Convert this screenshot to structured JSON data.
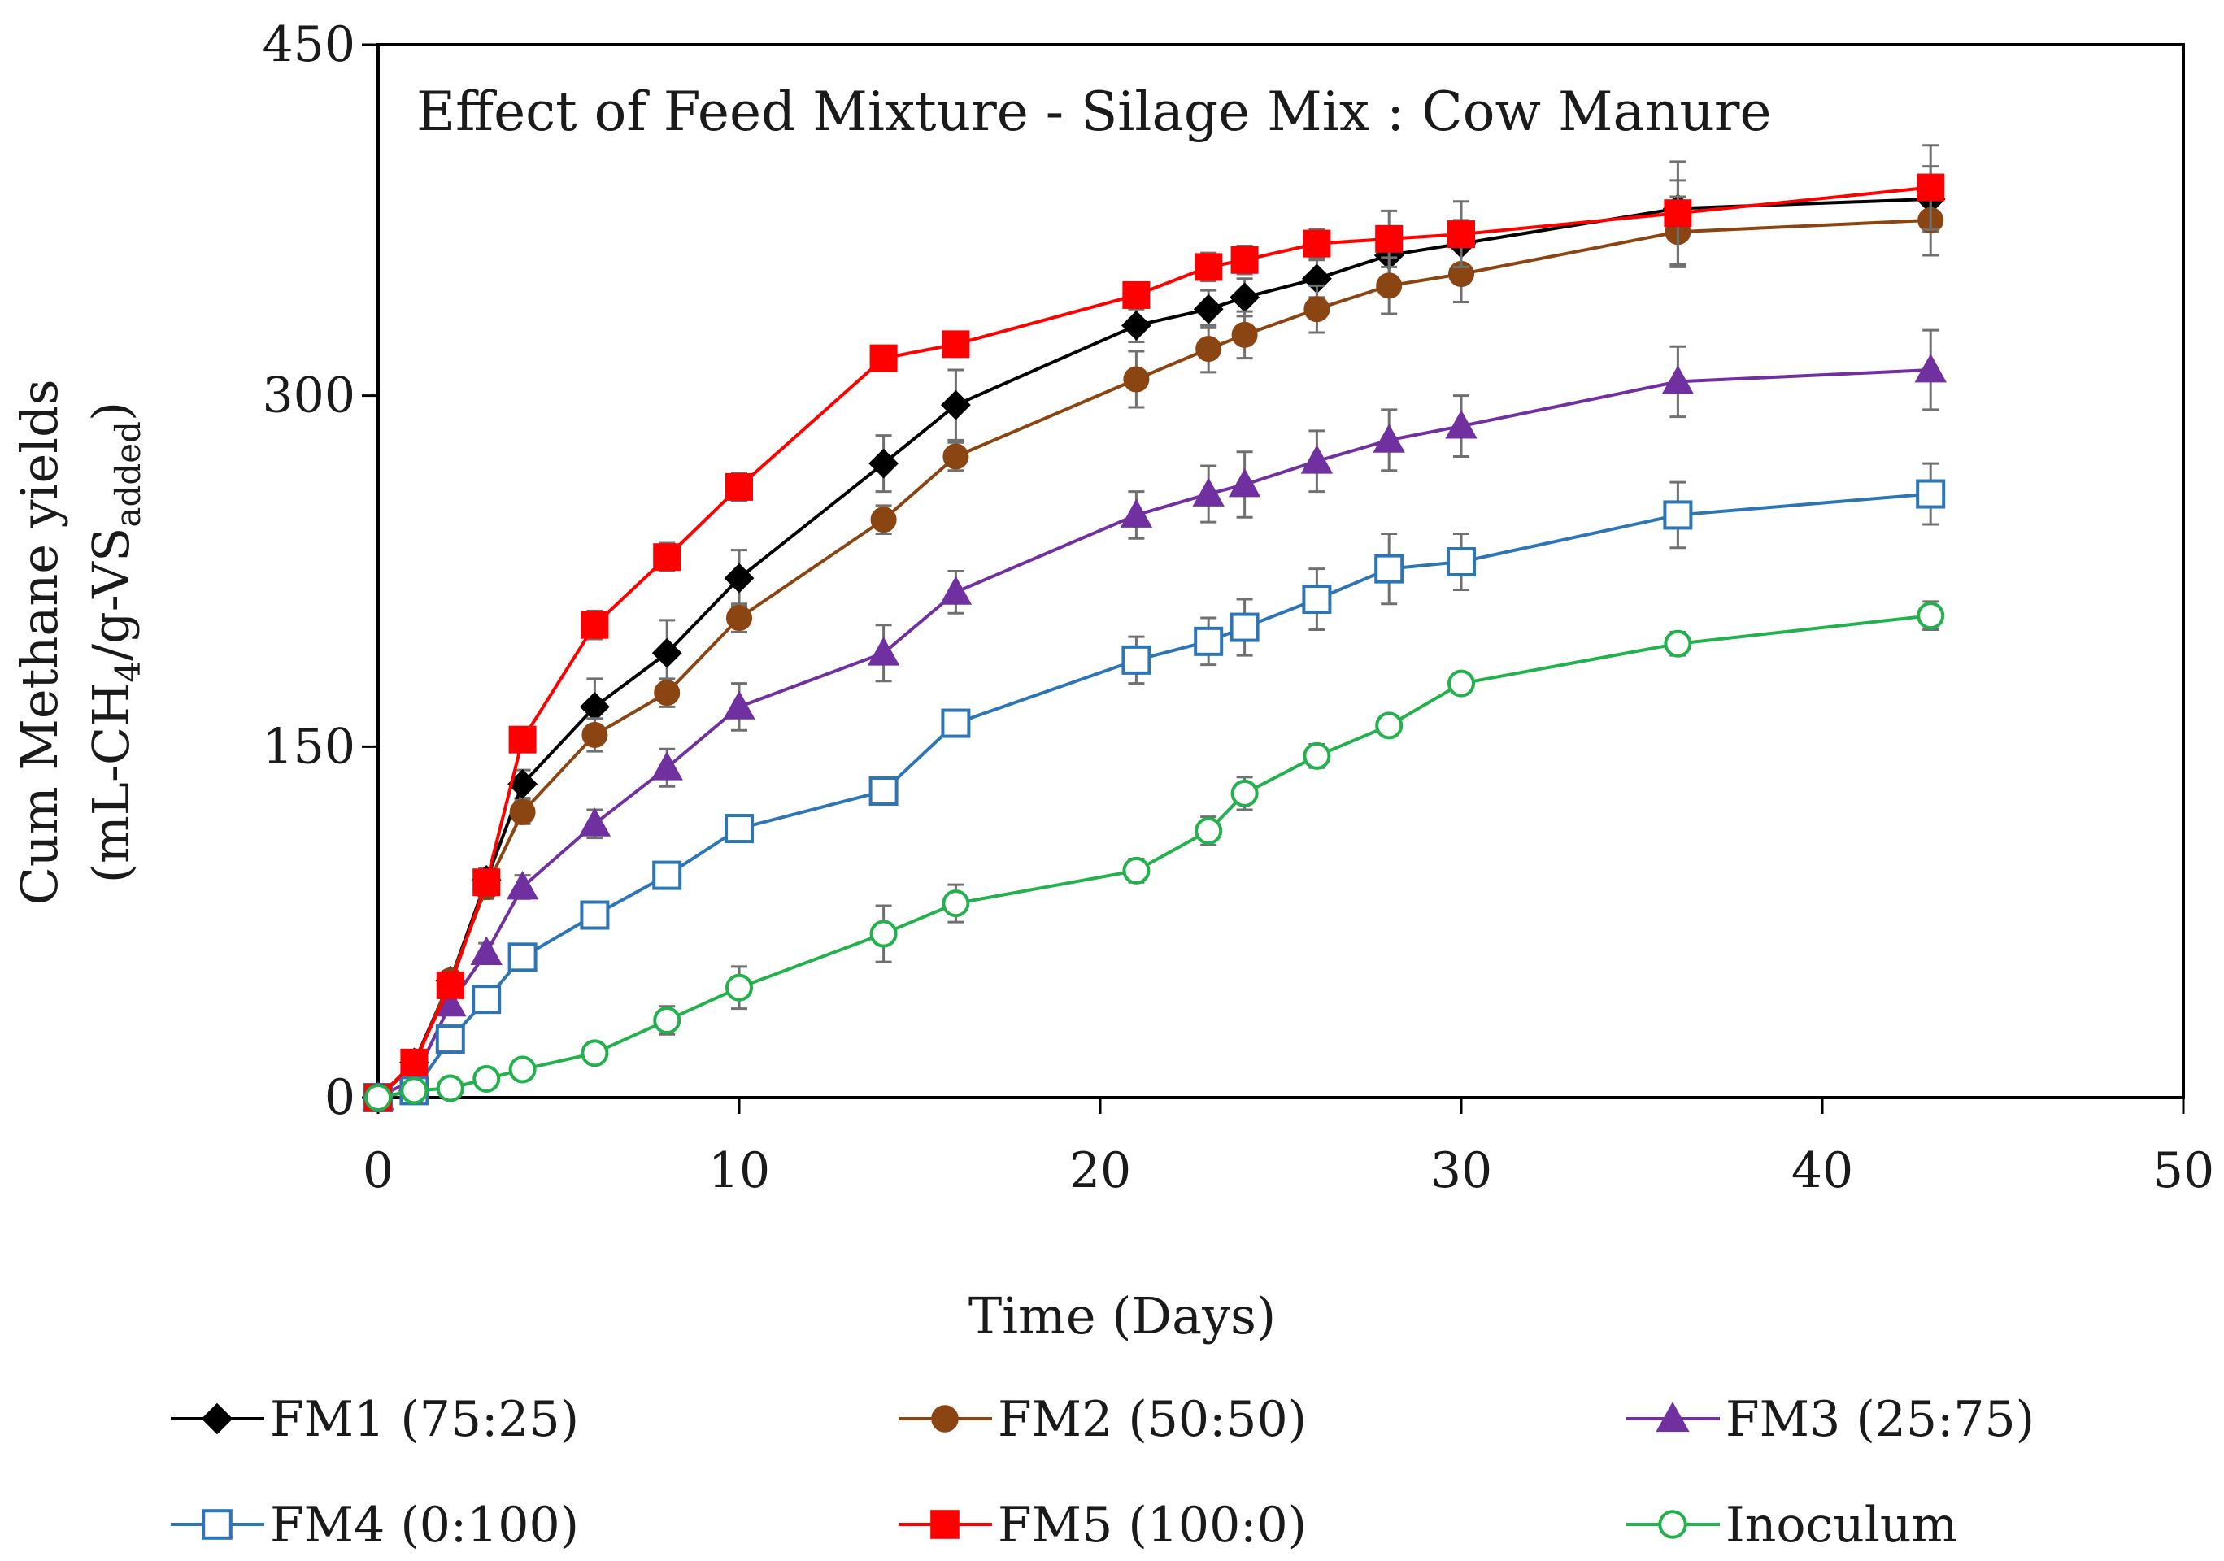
{
  "chart_data": {
    "type": "line",
    "title": "Effect of Feed Mixture  - Silage Mix : Cow Manure",
    "xlabel": "Time (Days)",
    "ylabel_line1": "Cum Methane yields",
    "ylabel_line2_prefix": "(mL-CH",
    "ylabel_sub1": "4",
    "ylabel_mid": "/g-VS",
    "ylabel_sub2": "added",
    "ylabel_suffix": ")",
    "xlim": [
      0,
      50
    ],
    "ylim": [
      0,
      450
    ],
    "x_ticks": [
      "0",
      "10",
      "20",
      "30",
      "40",
      "50"
    ],
    "y_ticks": [
      "0",
      "150",
      "300",
      "450"
    ],
    "legend_position": "bottom",
    "series": [
      {
        "name": "FM1 (75:25)",
        "color": "#000000",
        "marker": "diamond",
        "filled": true,
        "x": [
          0,
          1,
          2,
          3,
          4,
          6,
          8,
          10,
          14,
          16,
          21,
          23,
          24,
          26,
          28,
          30,
          36,
          43
        ],
        "y": [
          0,
          15,
          50,
          93,
          134,
          167,
          190,
          222,
          271,
          296,
          330,
          337,
          342,
          350,
          360,
          365,
          380,
          384
        ],
        "err": [
          2,
          3,
          4,
          5,
          6,
          12,
          14,
          12,
          12,
          15,
          7,
          8,
          8,
          8,
          9,
          10,
          12,
          14
        ]
      },
      {
        "name": "FM2 (50:50)",
        "color": "#8B4513",
        "marker": "circle",
        "filled": true,
        "x": [
          0,
          1,
          2,
          3,
          4,
          6,
          8,
          10,
          14,
          16,
          21,
          23,
          24,
          26,
          28,
          30,
          36,
          43
        ],
        "y": [
          0,
          14,
          50,
          90,
          122,
          155,
          173,
          205,
          247,
          274,
          307,
          320,
          326,
          337,
          347,
          352,
          370,
          375
        ],
        "err": [
          2,
          3,
          4,
          5,
          5,
          7,
          6,
          6,
          6,
          6,
          12,
          10,
          10,
          10,
          12,
          12,
          15,
          15
        ]
      },
      {
        "name": "FM3 (25:75)",
        "color": "#7030A0",
        "marker": "triangle",
        "filled": true,
        "x": [
          0,
          1,
          2,
          3,
          4,
          6,
          8,
          10,
          14,
          16,
          21,
          23,
          24,
          26,
          28,
          30,
          36,
          43
        ],
        "y": [
          0,
          8,
          40,
          62,
          90,
          117,
          141,
          167,
          190,
          216,
          249,
          258,
          262,
          272,
          281,
          287,
          306,
          311
        ],
        "err": [
          1,
          2,
          3,
          4,
          5,
          6,
          8,
          10,
          12,
          9,
          10,
          12,
          14,
          13,
          13,
          13,
          15,
          17
        ]
      },
      {
        "name": "FM4 (0:100)",
        "color": "#2E75B6",
        "marker": "square",
        "filled": false,
        "x": [
          0,
          1,
          2,
          3,
          4,
          6,
          8,
          10,
          14,
          16,
          21,
          23,
          24,
          26,
          28,
          30,
          36,
          43
        ],
        "y": [
          0,
          3,
          25,
          42,
          60,
          78,
          95,
          115,
          131,
          160,
          187,
          195,
          201,
          213,
          226,
          229,
          249,
          258
        ],
        "err": [
          1,
          2,
          3,
          3,
          3,
          4,
          5,
          4,
          5,
          5,
          10,
          10,
          12,
          13,
          15,
          12,
          14,
          13
        ]
      },
      {
        "name": "FM5 (100:0)",
        "color": "#FF0000",
        "marker": "square",
        "filled": true,
        "x": [
          0,
          1,
          2,
          3,
          4,
          6,
          8,
          10,
          14,
          16,
          21,
          23,
          24,
          26,
          28,
          30,
          36,
          43
        ],
        "y": [
          0,
          15,
          48,
          92,
          153,
          202,
          231,
          261,
          316,
          322,
          343,
          355,
          358,
          365,
          367,
          369,
          378,
          389
        ],
        "err": [
          1,
          2,
          3,
          4,
          5,
          6,
          6,
          6,
          5,
          5,
          5,
          6,
          6,
          6,
          12,
          14,
          22,
          18
        ]
      },
      {
        "name": "Inoculum",
        "color": "#22B14C",
        "marker": "circle",
        "filled": false,
        "x": [
          0,
          1,
          2,
          3,
          4,
          6,
          8,
          10,
          14,
          16,
          21,
          23,
          24,
          26,
          28,
          30,
          36,
          43
        ],
        "y": [
          0,
          3,
          4,
          8,
          12,
          19,
          33,
          47,
          70,
          83,
          97,
          114,
          130,
          146,
          159,
          177,
          194,
          206
        ],
        "err": [
          1,
          1,
          2,
          2,
          3,
          4,
          6,
          9,
          12,
          8,
          5,
          6,
          7,
          5,
          4,
          4,
          5,
          6
        ]
      }
    ]
  }
}
